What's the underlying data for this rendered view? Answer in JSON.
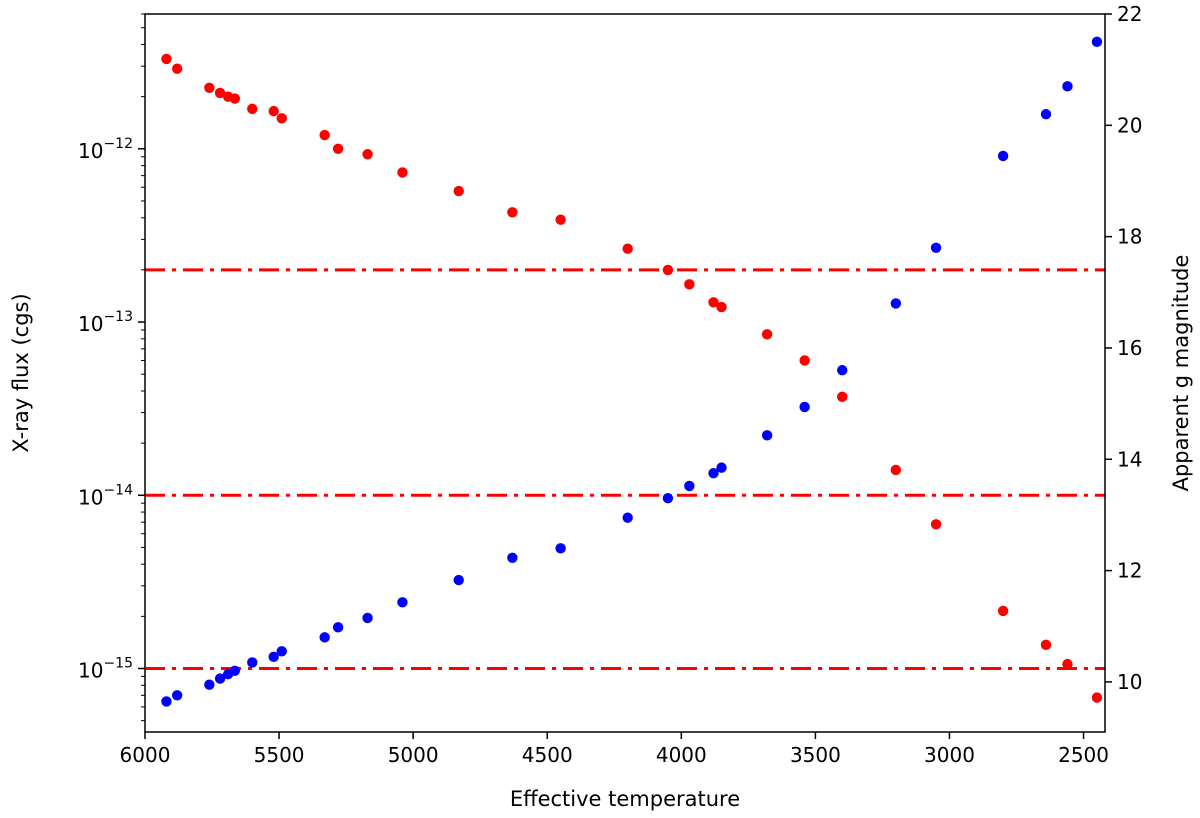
{
  "chart_data": {
    "type": "scatter",
    "title": "",
    "xlabel": "Effective temperature",
    "ylabel": "X-ray flux (cgs)",
    "ylabel_right": "Apparent g magnitude",
    "x_axis": {
      "range": [
        6000,
        2420
      ],
      "inverted": true,
      "ticks": [
        6000,
        5500,
        5000,
        4500,
        4000,
        3500,
        3000,
        2500
      ],
      "tick_labels": [
        "6000",
        "5500",
        "5000",
        "4500",
        "4000",
        "3500",
        "3000",
        "2500"
      ]
    },
    "y_left": {
      "scale": "log",
      "range": [
        4.3e-16,
        6e-12
      ],
      "ticks": [
        1e-15,
        1e-14,
        1e-13,
        1e-12
      ],
      "tick_labels": [
        {
          "base": "10",
          "exp": "−15"
        },
        {
          "base": "10",
          "exp": "−14"
        },
        {
          "base": "10",
          "exp": "−13"
        },
        {
          "base": "10",
          "exp": "−12"
        }
      ]
    },
    "y_right": {
      "scale": "linear",
      "range": [
        9.1,
        22.0
      ],
      "ticks": [
        10,
        12,
        14,
        16,
        18,
        20,
        22
      ],
      "tick_labels": [
        "10",
        "12",
        "14",
        "16",
        "18",
        "20",
        "22"
      ]
    },
    "hlines": {
      "axis": "left",
      "values": [
        1e-15,
        1e-14,
        2e-13
      ],
      "color": "#ff0000",
      "style": "dash-dot"
    },
    "series": [
      {
        "axis": "left",
        "color": "#ff0000",
        "x": [
          5920,
          5880,
          5760,
          5720,
          5690,
          5665,
          5600,
          5520,
          5490,
          5330,
          5280,
          5170,
          5040,
          4830,
          4630,
          4450,
          4200,
          4050,
          3970,
          3880,
          3850,
          3680,
          3540,
          3400,
          3200,
          3050,
          2800,
          2640,
          2560,
          2450
        ],
        "y": [
          3.3e-12,
          2.9e-12,
          2.25e-12,
          2.1e-12,
          2e-12,
          1.95e-12,
          1.7e-12,
          1.65e-12,
          1.5e-12,
          1.2e-12,
          1e-12,
          9.3e-13,
          7.3e-13,
          5.7e-13,
          4.3e-13,
          3.9e-13,
          2.65e-13,
          2e-13,
          1.65e-13,
          1.3e-13,
          1.22e-13,
          8.5e-14,
          6e-14,
          3.7e-14,
          1.4e-14,
          6.8e-15,
          2.15e-15,
          1.37e-15,
          1.06e-15,
          6.8e-16
        ]
      },
      {
        "axis": "right",
        "color": "#0000ff",
        "x": [
          5920,
          5880,
          5760,
          5720,
          5690,
          5665,
          5600,
          5520,
          5490,
          5330,
          5280,
          5170,
          5040,
          4830,
          4630,
          4450,
          4200,
          4050,
          3970,
          3880,
          3850,
          3680,
          3540,
          3400,
          3200,
          3050,
          2800,
          2640,
          2560,
          2450
        ],
        "y": [
          9.65,
          9.76,
          9.95,
          10.06,
          10.14,
          10.2,
          10.35,
          10.45,
          10.55,
          10.8,
          10.98,
          11.15,
          11.43,
          11.83,
          12.23,
          12.4,
          12.95,
          13.3,
          13.52,
          13.75,
          13.85,
          14.43,
          14.94,
          15.6,
          16.8,
          17.8,
          19.45,
          20.2,
          20.7,
          21.5
        ]
      }
    ]
  }
}
